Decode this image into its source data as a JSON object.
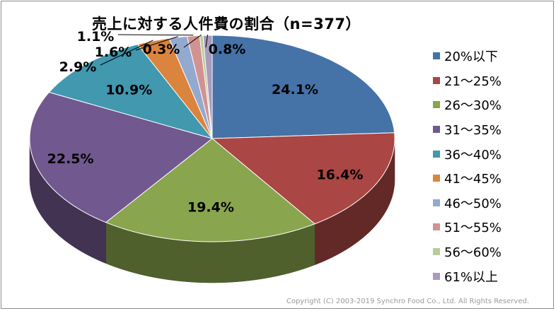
{
  "chart_data": {
    "type": "pie",
    "title": "売上に対する人件費の割合（n=377）",
    "categories": [
      "20%以下",
      "21～25%",
      "26～30%",
      "31～35%",
      "36～40%",
      "41～45%",
      "46～50%",
      "51～55%",
      "56～60%",
      "61%以上"
    ],
    "values": [
      24.1,
      16.4,
      19.4,
      22.5,
      10.9,
      2.9,
      1.6,
      1.1,
      0.3,
      0.8
    ],
    "data_labels": [
      "24.1%",
      "16.4%",
      "19.4%",
      "22.5%",
      "10.9%",
      "2.9%",
      "1.6%",
      "1.1%",
      "0.3%",
      "0.8%"
    ],
    "colors": [
      "#4572a7",
      "#aa4643",
      "#89a54e",
      "#71588f",
      "#4198af",
      "#db843d",
      "#93a9cf",
      "#d19392",
      "#b9cd96",
      "#a99bbd"
    ],
    "legend_position": "right",
    "style": "3d"
  },
  "footer": {
    "copyright": "Copyright (C) 2003-2019  Synchro Food Co., Ltd. All Rights Reserved."
  }
}
